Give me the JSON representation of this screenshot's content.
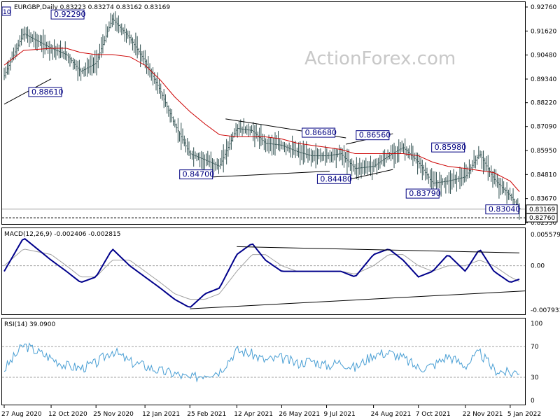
{
  "header": {
    "symbol_line": "EURGBP,Daily  0.83223 0.83274 0.83162 0.83169",
    "corner_tag": "10"
  },
  "watermark": "ActionForex.com",
  "price_axis": [
    "0.92760",
    "0.91620",
    "0.90480",
    "0.89340",
    "0.88220",
    "0.87090",
    "0.85950",
    "0.84810",
    "0.83670",
    "0.82530"
  ],
  "price_current": "0.83169",
  "price_low_line": "0.82760",
  "macd_label": "MACD(12,26,9) -0.002406 -0.002815",
  "macd_axis": [
    "0.005579",
    "0.00",
    "-0.007931"
  ],
  "rsi_label": "RSI(14) 39.0900",
  "rsi_axis": [
    "100",
    "70",
    "30",
    "0"
  ],
  "date_axis": [
    "27 Aug 2020",
    "12 Oct 2020",
    "25 Nov 2020",
    "12 Jan 2021",
    "25 Feb 2021",
    "12 Apr 2021",
    "26 May 2021",
    "9 Jul 2021",
    "24 Aug 2021",
    "7 Oct 2021",
    "22 Nov 2021",
    "5 Jan 2022"
  ],
  "annotations": [
    "0.92290",
    "0.88610",
    "0.84700",
    "0.86680",
    "0.84480",
    "0.86560",
    "0.83790",
    "0.85980",
    "0.83040"
  ],
  "colors": {
    "bar": "#2f4f4f",
    "ma": "#cc0000",
    "macd": "#00008b",
    "signal": "#a0a0a0",
    "rsi": "#4a9fd4",
    "box_border": "#000080"
  },
  "chart_data": [
    {
      "type": "line",
      "title": "EURGBP,Daily",
      "ylim": [
        0.8253,
        0.9276
      ],
      "x": [
        "2020-08-27",
        "2020-09-15",
        "2020-10-12",
        "2020-10-27",
        "2020-11-10",
        "2020-11-25",
        "2020-12-11",
        "2020-12-28",
        "2021-01-12",
        "2021-01-27",
        "2021-02-10",
        "2021-02-25",
        "2021-03-12",
        "2021-03-26",
        "2021-04-12",
        "2021-04-27",
        "2021-05-10",
        "2021-05-26",
        "2021-06-10",
        "2021-06-24",
        "2021-07-09",
        "2021-07-23",
        "2021-08-06",
        "2021-08-24",
        "2021-09-08",
        "2021-09-22",
        "2021-10-07",
        "2021-10-21",
        "2021-11-05",
        "2021-11-22",
        "2021-12-06",
        "2021-12-20",
        "2022-01-05",
        "2022-01-14"
      ],
      "series": [
        {
          "name": "close",
          "values": [
            0.895,
            0.915,
            0.908,
            0.905,
            0.897,
            0.901,
            0.922,
            0.913,
            0.902,
            0.888,
            0.872,
            0.858,
            0.855,
            0.852,
            0.87,
            0.869,
            0.863,
            0.862,
            0.859,
            0.857,
            0.857,
            0.858,
            0.851,
            0.852,
            0.857,
            0.861,
            0.854,
            0.844,
            0.845,
            0.847,
            0.858,
            0.846,
            0.838,
            0.832
          ]
        },
        {
          "name": "ma",
          "values": [
            0.9,
            0.907,
            0.908,
            0.908,
            0.906,
            0.905,
            0.905,
            0.904,
            0.9,
            0.893,
            0.885,
            0.878,
            0.872,
            0.867,
            0.866,
            0.866,
            0.866,
            0.865,
            0.863,
            0.862,
            0.861,
            0.86,
            0.858,
            0.858,
            0.858,
            0.858,
            0.857,
            0.854,
            0.852,
            0.851,
            0.85,
            0.849,
            0.845,
            0.84
          ]
        }
      ],
      "annotations": [
        "0.92290",
        "0.88610",
        "0.84700",
        "0.86680",
        "0.84480",
        "0.86560",
        "0.83790",
        "0.85980",
        "0.83040"
      ]
    },
    {
      "type": "line",
      "title": "MACD(12,26,9) -0.002406 -0.002815",
      "ylim": [
        -0.007931,
        0.005579
      ],
      "x": [
        "2020-08-27",
        "2020-09-15",
        "2020-10-12",
        "2020-10-27",
        "2020-11-10",
        "2020-11-25",
        "2020-12-11",
        "2020-12-28",
        "2021-01-12",
        "2021-01-27",
        "2021-02-10",
        "2021-02-25",
        "2021-03-12",
        "2021-03-26",
        "2021-04-12",
        "2021-04-27",
        "2021-05-10",
        "2021-05-26",
        "2021-06-10",
        "2021-06-24",
        "2021-07-09",
        "2021-07-23",
        "2021-08-06",
        "2021-08-24",
        "2021-09-08",
        "2021-09-22",
        "2021-10-07",
        "2021-10-21",
        "2021-11-05",
        "2021-11-22",
        "2021-12-06",
        "2021-12-20",
        "2022-01-05",
        "2022-01-14"
      ],
      "series": [
        {
          "name": "macd",
          "values": [
            -0.001,
            0.005,
            0.001,
            -0.001,
            -0.003,
            -0.002,
            0.003,
            0.0,
            -0.002,
            -0.004,
            -0.006,
            -0.0075,
            -0.005,
            -0.004,
            0.002,
            0.004,
            0.001,
            -0.001,
            -0.001,
            -0.001,
            -0.001,
            -0.001,
            -0.002,
            0.002,
            0.003,
            0.001,
            -0.002,
            -0.001,
            0.002,
            -0.001,
            0.003,
            -0.001,
            -0.003,
            -0.0024
          ]
        },
        {
          "name": "signal",
          "values": [
            0.0,
            0.003,
            0.002,
            0.0,
            -0.002,
            -0.002,
            0.001,
            0.001,
            -0.001,
            -0.003,
            -0.005,
            -0.006,
            -0.006,
            -0.005,
            -0.001,
            0.002,
            0.002,
            0.0,
            -0.001,
            -0.001,
            -0.001,
            -0.001,
            -0.0015,
            0.0,
            0.002,
            0.002,
            0.0,
            -0.001,
            0.0,
            0.0,
            0.001,
            0.0,
            -0.002,
            -0.0028
          ]
        }
      ]
    },
    {
      "type": "line",
      "title": "RSI(14) 39.0900",
      "ylim": [
        0,
        100
      ],
      "x": [
        "2020-08-27",
        "2020-09-15",
        "2020-10-12",
        "2020-10-27",
        "2020-11-10",
        "2020-11-25",
        "2020-12-11",
        "2020-12-28",
        "2021-01-12",
        "2021-01-27",
        "2021-02-10",
        "2021-02-25",
        "2021-03-12",
        "2021-03-26",
        "2021-04-12",
        "2021-04-27",
        "2021-05-10",
        "2021-05-26",
        "2021-06-10",
        "2021-06-24",
        "2021-07-09",
        "2021-07-23",
        "2021-08-06",
        "2021-08-24",
        "2021-09-08",
        "2021-09-22",
        "2021-10-07",
        "2021-10-21",
        "2021-11-05",
        "2021-11-22",
        "2021-12-06",
        "2021-12-20",
        "2022-01-05",
        "2022-01-14"
      ],
      "series": [
        {
          "name": "rsi",
          "values": [
            40,
            72,
            55,
            45,
            42,
            48,
            65,
            50,
            45,
            38,
            35,
            28,
            35,
            38,
            65,
            60,
            52,
            55,
            48,
            52,
            45,
            50,
            42,
            60,
            62,
            55,
            42,
            45,
            58,
            45,
            62,
            40,
            35,
            39
          ]
        }
      ]
    }
  ]
}
